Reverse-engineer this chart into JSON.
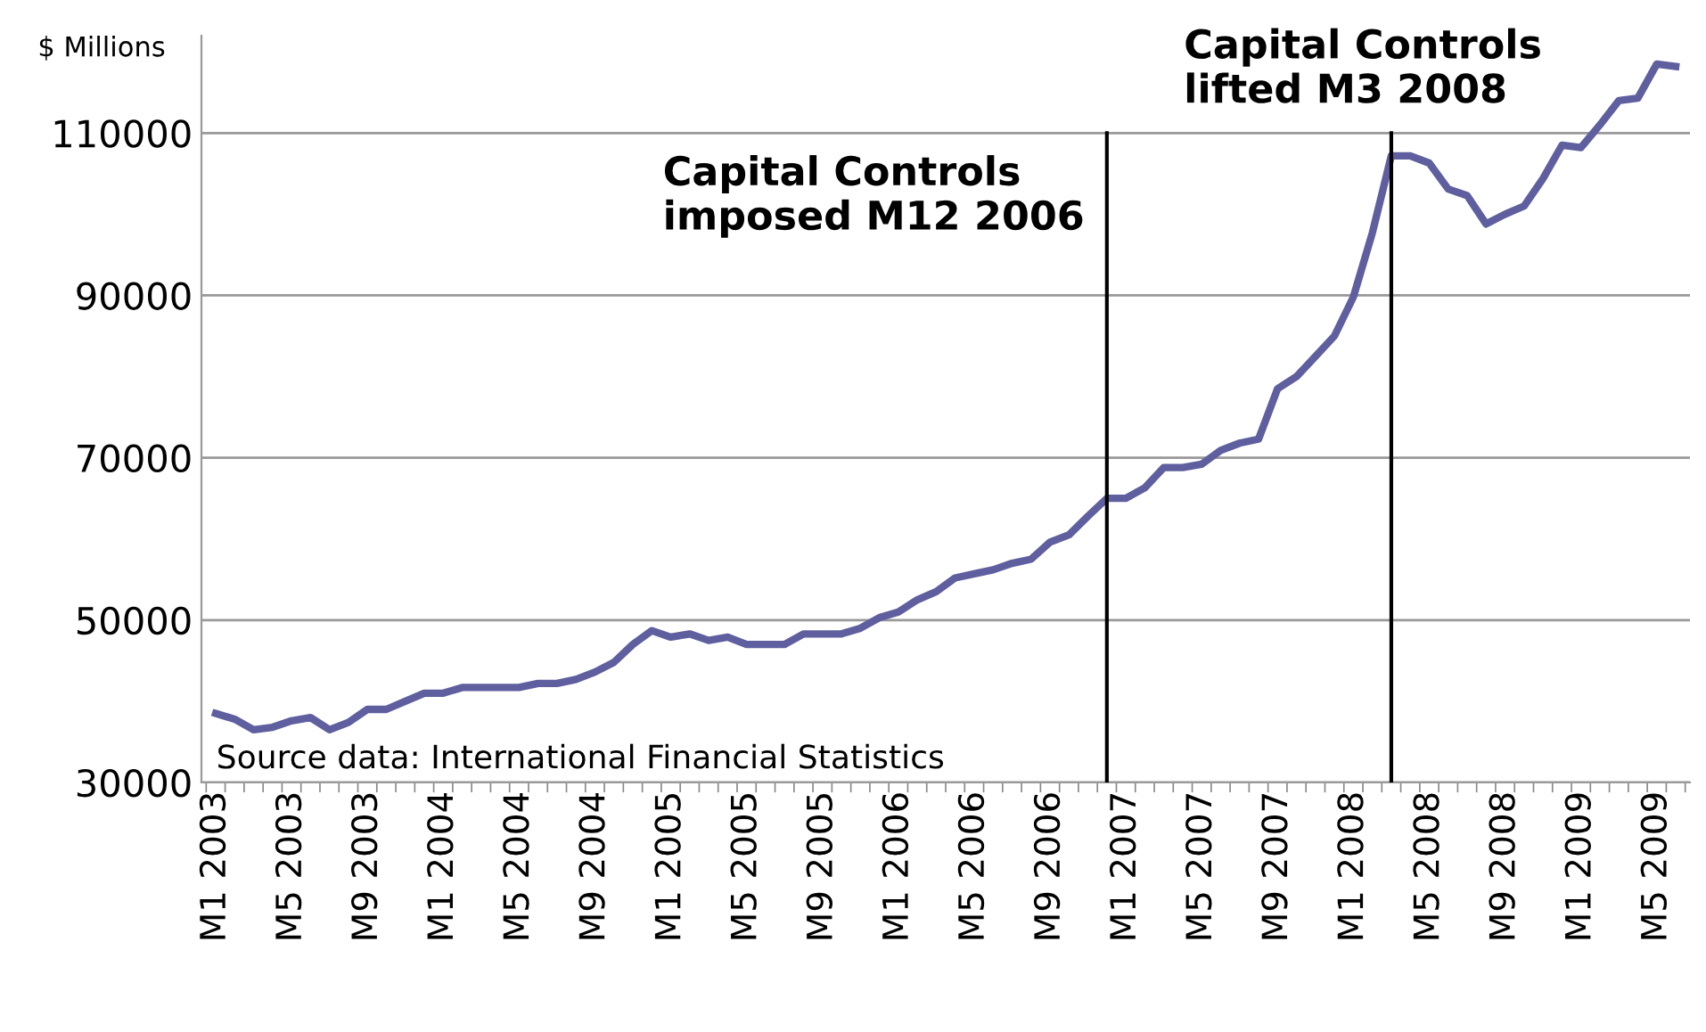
{
  "chart_data": {
    "type": "line",
    "ylabel": "$ Millions",
    "categories": [
      "M1 2003",
      null,
      null,
      null,
      "M5 2003",
      null,
      null,
      null,
      "M9 2003",
      null,
      null,
      null,
      "M1 2004",
      null,
      null,
      null,
      "M5 2004",
      null,
      null,
      null,
      "M9 2004",
      null,
      null,
      null,
      "M1 2005",
      null,
      null,
      null,
      "M5 2005",
      null,
      null,
      null,
      "M9 2005",
      null,
      null,
      null,
      "M1 2006",
      null,
      null,
      null,
      "M5 2006",
      null,
      null,
      null,
      "M9 2006",
      null,
      null,
      null,
      "M1 2007",
      null,
      null,
      null,
      "M5 2007",
      null,
      null,
      null,
      "M9 2007",
      null,
      null,
      null,
      "M1 2008",
      null,
      null,
      null,
      "M5 2008",
      null,
      null,
      null,
      "M9 2008",
      null,
      null,
      null,
      "M1 2009",
      null,
      null,
      null,
      "M5 2009",
      null
    ],
    "series": [
      {
        "color": "#5f5f9f",
        "values": [
          38500,
          37800,
          36500,
          36800,
          37600,
          38000,
          36500,
          37400,
          39000,
          39000,
          40000,
          41000,
          41000,
          41700,
          41700,
          41700,
          41700,
          42200,
          42200,
          42700,
          43600,
          44800,
          47000,
          48700,
          47900,
          48300,
          47500,
          47900,
          47000,
          47000,
          47000,
          48300,
          48300,
          48300,
          49000,
          50300,
          51000,
          52500,
          53500,
          55200,
          55700,
          56200,
          57000,
          57500,
          59600,
          60500,
          62800,
          65000,
          65000,
          66300,
          68800,
          68800,
          69200,
          70900,
          71800,
          72300,
          78500,
          80000,
          82500,
          85000,
          89800,
          97700,
          107200,
          107200,
          106300,
          103100,
          102300,
          98800,
          100000,
          101000,
          104400,
          108500,
          108200,
          111000,
          114000,
          114300,
          118500,
          118200
        ]
      }
    ],
    "ylim": [
      30000,
      122000
    ],
    "yticks": [
      30000,
      50000,
      70000,
      90000,
      110000
    ],
    "grid": "y",
    "annotations": [
      "Capital Controls\nimposed M12 2006",
      "Capital Controls\nlifted M3 2008",
      "Source data: International Financial Statistics"
    ]
  }
}
